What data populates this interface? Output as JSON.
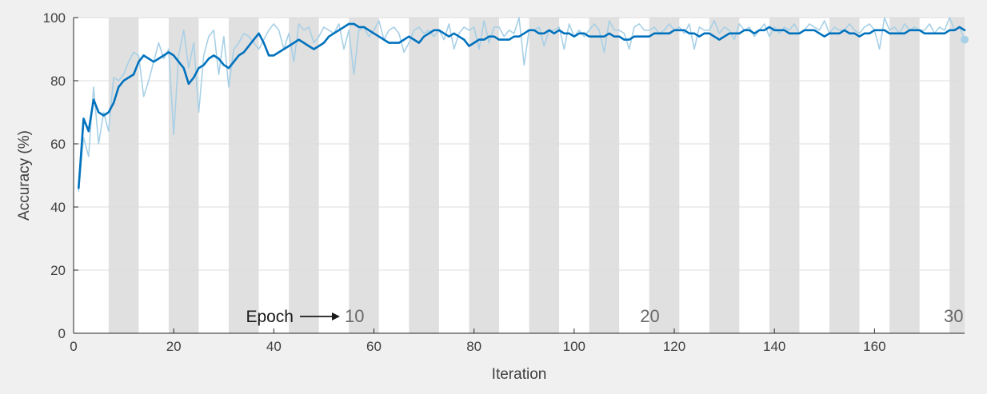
{
  "chart_data": {
    "type": "line",
    "xlabel": "Iteration",
    "ylabel": "Accuracy (%)",
    "xlim": [
      0,
      178
    ],
    "ylim": [
      0,
      100
    ],
    "x_ticks": [
      0,
      20,
      40,
      60,
      80,
      100,
      120,
      140,
      160
    ],
    "y_ticks": [
      0,
      20,
      40,
      60,
      80,
      100
    ],
    "grid": true,
    "epoch_annotation": "Epoch",
    "epoch_labels": [
      {
        "text": "10",
        "x": 58
      },
      {
        "text": "20",
        "x": 117
      },
      {
        "text": "30",
        "x": 178
      }
    ],
    "epoch_bands": [
      [
        7,
        13
      ],
      [
        19,
        25
      ],
      [
        31,
        37
      ],
      [
        43,
        49
      ],
      [
        55,
        61
      ],
      [
        67,
        73
      ],
      [
        79,
        85
      ],
      [
        91,
        97
      ],
      [
        103,
        109
      ],
      [
        115,
        121
      ],
      [
        127,
        133
      ],
      [
        139,
        145
      ],
      [
        151,
        157
      ],
      [
        163,
        169
      ],
      [
        175,
        178
      ]
    ],
    "colors": {
      "smoothed": "#0072bd",
      "raw": "#a8d0e6",
      "band": "#e0e0e0",
      "plot_bg": "#ffffff",
      "grid": "#dcdcdc"
    },
    "series": [
      {
        "role": "raw",
        "x": [
          1,
          2,
          3,
          4,
          5,
          6,
          7,
          8,
          9,
          10,
          11,
          12,
          13,
          14,
          15,
          16,
          17,
          18,
          19,
          20,
          21,
          22,
          23,
          24,
          25,
          26,
          27,
          28,
          29,
          30,
          31,
          32,
          33,
          34,
          35,
          36,
          37,
          38,
          39,
          40,
          41,
          42,
          43,
          44,
          45,
          46,
          47,
          48,
          49,
          50,
          51,
          52,
          53,
          54,
          55,
          56,
          57,
          58,
          59,
          60,
          61,
          62,
          63,
          64,
          65,
          66,
          67,
          68,
          69,
          70,
          71,
          72,
          73,
          74,
          75,
          76,
          77,
          78,
          79,
          80,
          81,
          82,
          83,
          84,
          85,
          86,
          87,
          88,
          89,
          90,
          91,
          92,
          93,
          94,
          95,
          96,
          97,
          98,
          99,
          100,
          101,
          102,
          103,
          104,
          105,
          106,
          107,
          108,
          109,
          110,
          111,
          112,
          113,
          114,
          115,
          116,
          117,
          118,
          119,
          120,
          121,
          122,
          123,
          124,
          125,
          126,
          127,
          128,
          129,
          130,
          131,
          132,
          133,
          134,
          135,
          136,
          137,
          138,
          139,
          140,
          141,
          142,
          143,
          144,
          145,
          146,
          147,
          148,
          149,
          150,
          151,
          152,
          153,
          154,
          155,
          156,
          157,
          158,
          159,
          160,
          161,
          162,
          163,
          164,
          165,
          166,
          167,
          168,
          169,
          170,
          171,
          172,
          173,
          174,
          175,
          176,
          177,
          178
        ],
        "y": [
          45,
          62,
          56,
          78,
          60,
          70,
          64,
          81,
          80,
          82,
          86,
          89,
          88,
          75,
          80,
          86,
          92,
          87,
          90,
          63,
          88,
          96,
          84,
          92,
          70,
          88,
          94,
          96,
          82,
          94,
          78,
          90,
          92,
          95,
          94,
          92,
          90,
          93,
          96,
          98,
          96,
          90,
          95,
          86,
          98,
          96,
          97,
          92,
          94,
          97,
          96,
          95,
          98,
          90,
          96,
          82,
          96,
          97,
          94,
          96,
          99,
          93,
          96,
          97,
          95,
          89,
          92,
          96,
          97,
          95,
          96,
          94,
          96,
          93,
          98,
          90,
          95,
          97,
          96,
          97,
          90,
          99,
          92,
          97,
          97,
          94,
          96,
          95,
          100,
          85,
          96,
          96,
          97,
          91,
          96,
          96,
          97,
          90,
          98,
          94,
          96,
          94,
          96,
          98,
          96,
          89,
          99,
          96,
          96,
          95,
          90,
          97,
          98,
          96,
          96,
          97,
          95,
          96,
          98,
          96,
          97,
          95,
          98,
          90,
          97,
          96,
          96,
          99,
          95,
          97,
          96,
          93,
          98,
          96,
          97,
          94,
          96,
          98,
          94,
          97,
          95,
          97,
          96,
          98,
          95,
          96,
          98,
          97,
          96,
          99,
          95,
          97,
          96,
          96,
          98,
          96,
          95,
          97,
          98,
          96,
          90,
          100,
          96,
          97,
          95,
          98,
          96,
          97,
          96,
          96,
          98,
          95,
          97,
          96,
          100,
          96,
          97,
          93
        ]
      },
      {
        "role": "smoothed",
        "x": [
          1,
          2,
          3,
          4,
          5,
          6,
          7,
          8,
          9,
          10,
          11,
          12,
          13,
          14,
          15,
          16,
          17,
          18,
          19,
          20,
          21,
          22,
          23,
          24,
          25,
          26,
          27,
          28,
          29,
          30,
          31,
          32,
          33,
          34,
          35,
          36,
          37,
          38,
          39,
          40,
          41,
          42,
          43,
          44,
          45,
          46,
          47,
          48,
          49,
          50,
          51,
          52,
          53,
          54,
          55,
          56,
          57,
          58,
          59,
          60,
          61,
          62,
          63,
          64,
          65,
          66,
          67,
          68,
          69,
          70,
          71,
          72,
          73,
          74,
          75,
          76,
          77,
          78,
          79,
          80,
          81,
          82,
          83,
          84,
          85,
          86,
          87,
          88,
          89,
          90,
          91,
          92,
          93,
          94,
          95,
          96,
          97,
          98,
          99,
          100,
          101,
          102,
          103,
          104,
          105,
          106,
          107,
          108,
          109,
          110,
          111,
          112,
          113,
          114,
          115,
          116,
          117,
          118,
          119,
          120,
          121,
          122,
          123,
          124,
          125,
          126,
          127,
          128,
          129,
          130,
          131,
          132,
          133,
          134,
          135,
          136,
          137,
          138,
          139,
          140,
          141,
          142,
          143,
          144,
          145,
          146,
          147,
          148,
          149,
          150,
          151,
          152,
          153,
          154,
          155,
          156,
          157,
          158,
          159,
          160,
          161,
          162,
          163,
          164,
          165,
          166,
          167,
          168,
          169,
          170,
          171,
          172,
          173,
          174,
          175,
          176,
          177,
          178
        ],
        "y": [
          46,
          68,
          64,
          74,
          70,
          69,
          70,
          73,
          78,
          80,
          81,
          82,
          86,
          88,
          87,
          86,
          87,
          88,
          89,
          88,
          86,
          84,
          79,
          81,
          84,
          85,
          87,
          88,
          87,
          85,
          84,
          86,
          88,
          89,
          91,
          93,
          95,
          92,
          88,
          88,
          89,
          90,
          91,
          92,
          93,
          92,
          91,
          90,
          91,
          92,
          94,
          95,
          96,
          97,
          98,
          98,
          97,
          97,
          96,
          95,
          94,
          93,
          92,
          92,
          92,
          93,
          94,
          93,
          92,
          94,
          95,
          96,
          96,
          95,
          94,
          95,
          94,
          93,
          91,
          92,
          93,
          93,
          94,
          94,
          93,
          93,
          93,
          94,
          94,
          95,
          96,
          96,
          95,
          95,
          96,
          95,
          96,
          95,
          95,
          94,
          95,
          95,
          94,
          94,
          94,
          94,
          95,
          94,
          94,
          93,
          93,
          94,
          94,
          94,
          94,
          95,
          95,
          95,
          95,
          96,
          96,
          96,
          95,
          95,
          94,
          95,
          95,
          94,
          93,
          94,
          95,
          95,
          95,
          96,
          96,
          95,
          96,
          96,
          97,
          96,
          96,
          96,
          95,
          95,
          95,
          96,
          96,
          96,
          95,
          94,
          95,
          95,
          95,
          96,
          95,
          95,
          94,
          95,
          95,
          96,
          96,
          96,
          95,
          95,
          95,
          95,
          96,
          96,
          96,
          95,
          95,
          95,
          95,
          95,
          96,
          96,
          97,
          96
        ]
      }
    ],
    "final_marker": {
      "x": 178,
      "y": 93
    }
  }
}
